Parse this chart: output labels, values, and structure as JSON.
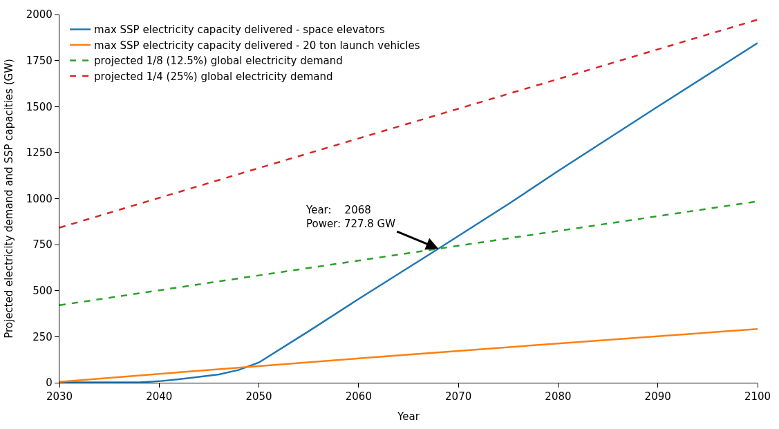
{
  "chart_data": {
    "type": "line",
    "xlabel": "Year",
    "ylabel": "Projected electricity demand and SSP capacities (GW)",
    "xlim": [
      2030,
      2100
    ],
    "ylim": [
      0,
      2000
    ],
    "xticks": [
      2030,
      2040,
      2050,
      2060,
      2070,
      2080,
      2090,
      2100
    ],
    "yticks": [
      0,
      250,
      500,
      750,
      1000,
      1250,
      1500,
      1750,
      2000
    ],
    "legend": "top left",
    "marker": "none",
    "series": [
      {
        "name": "max SSP electricity capacity delivered - space elevators",
        "color": "#1f77b4",
        "line_style": "solid",
        "x": [
          2030,
          2035,
          2038,
          2040,
          2043,
          2046,
          2048,
          2050,
          2055,
          2060,
          2068,
          2075,
          2080,
          2090,
          2100
        ],
        "values": [
          2,
          2,
          2,
          8,
          25,
          45,
          70,
          110,
          280,
          455,
          728,
          970,
          1150,
          1500,
          1845
        ]
      },
      {
        "name": "max SSP electricity capacity delivered - 20 ton launch vehicles",
        "color": "#ff7f0e",
        "line_style": "solid",
        "x": [
          2030,
          2040,
          2050,
          2060,
          2070,
          2080,
          2090,
          2100
        ],
        "values": [
          5,
          48,
          90,
          132,
          173,
          213,
          252,
          292
        ]
      },
      {
        "name": "projected 1/8 (12.5%) global electricity demand",
        "color": "#2ca02c",
        "line_style": "dashed",
        "x": [
          2030,
          2050,
          2068,
          2100
        ],
        "values": [
          421,
          583,
          728,
          985
        ]
      },
      {
        "name": "projected 1/4 (25%) global electricity demand",
        "color": "#d62728",
        "line_style": "dashed",
        "x": [
          2030,
          2050,
          2068,
          2100
        ],
        "values": [
          842,
          1166,
          1456,
          1972
        ]
      }
    ],
    "annotations": [
      {
        "text": "Year:    2068\nPower: 727.8 GW",
        "x": 2068,
        "y": 727.8
      }
    ]
  }
}
